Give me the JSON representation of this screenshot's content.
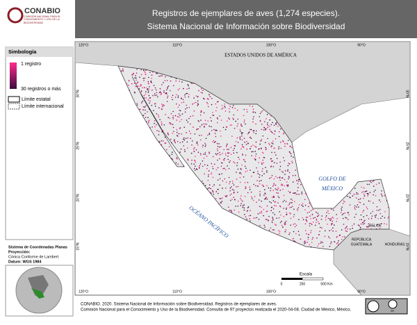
{
  "logo": {
    "name": "CONABIO",
    "tagline": "COMISIÓN NACIONAL PARA EL CONOCIMIENTO Y USO DE LA BIODIVERSIDAD"
  },
  "header": {
    "title": "Registros de ejemplares de aves (1,274 especies).",
    "subtitle": "Sistema Nacional de Información sobre Biodiversidad"
  },
  "legend": {
    "title": "Simbología",
    "min_label": "1 registro",
    "max_label": "30 registros o más",
    "state": "Límite estatal",
    "international": "Límite internacional"
  },
  "projection": {
    "system": "Sistema de Coordenadas Planas",
    "label": "Proyección:",
    "name": "Cónica Conforme de Lambert",
    "datum": "Datum: WGS 1984"
  },
  "graticule": {
    "lon": [
      "120°O",
      "110°O",
      "100°O",
      "90°O"
    ],
    "lat": [
      "30°N",
      "25°N",
      "20°N",
      "15°N"
    ]
  },
  "places": {
    "usa": "ESTADOS UNIDOS DE AMÉRICA",
    "gulf1": "GOLFO DE",
    "gulf2": "MÉXICO",
    "pacific": "OCÉANO PACÍFICO",
    "belize": "BELICE",
    "guatemala1": "REPÚBLICA",
    "guatemala2": "GUATEMALA",
    "honduras": "HONDURAS"
  },
  "scale": {
    "title": "Escala",
    "ticks": [
      "0",
      "250",
      "500 Km"
    ]
  },
  "footer": {
    "line1": "CONABIO. 2020. Sistema Nacional de Información sobre Biodiversidad. Registros de ejemplares de aves.",
    "line2": "Comisión Nacional para el Conocimiento y Uso de la Biodiversidad. Consulta de 97 proyectos realizada el 2020-04-08. Ciudad de México, México.",
    "license": "BY"
  }
}
